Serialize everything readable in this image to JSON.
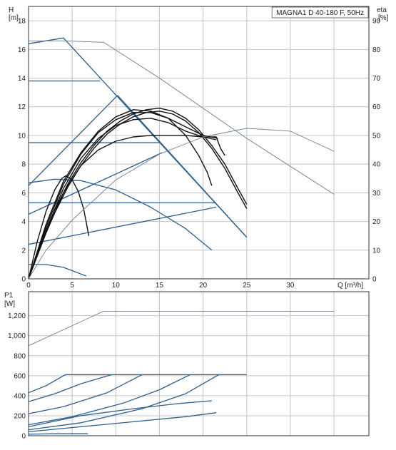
{
  "title": "MAGNA1 D 40-180 F, 50Hz",
  "colors": {
    "curve_black": "#111111",
    "curve_blue": "#2d5e8c",
    "curve_thin": "#6a7d98",
    "grid": "#c4c4c4"
  },
  "chart_data": [
    {
      "type": "line",
      "title": "MAGNA1 D 40-180 F, 50Hz",
      "ylabel_left": "H",
      "ylabel_left_unit": "[m]",
      "ylabel_right": "eta",
      "ylabel_right_unit": "[%]",
      "xlabel": "Q [m³/h]",
      "xlim": [
        0,
        39
      ],
      "ylim": [
        0,
        19
      ],
      "ylim_right": [
        0,
        95
      ],
      "x_ticks": [
        "0",
        "5",
        "10",
        "15",
        "20",
        "25",
        "30"
      ],
      "y_ticks": [
        "0",
        "2",
        "4",
        "6",
        "8",
        "10",
        "12",
        "14",
        "16",
        "18"
      ],
      "y_right_ticks": [
        "0",
        "10",
        "20",
        "30",
        "40",
        "50",
        "60",
        "70",
        "80",
        "90"
      ],
      "grid": true,
      "series": [
        {
          "group": "blue",
          "points": [
            [
              0,
              16.4
            ],
            [
              4,
              16.8
            ],
            [
              25,
              2.9
            ]
          ]
        },
        {
          "group": "blue",
          "points": [
            [
              0,
              13.8
            ],
            [
              8.2,
              13.8
            ]
          ]
        },
        {
          "group": "blue",
          "points": [
            [
              0,
              6.5
            ],
            [
              10.2,
              12.8
            ]
          ]
        },
        {
          "group": "blue",
          "points": [
            [
              0,
              9.5
            ],
            [
              15,
              9.5
            ]
          ]
        },
        {
          "group": "blue",
          "points": [
            [
              10.2,
              12.8
            ],
            [
              25,
              2.9
            ]
          ]
        },
        {
          "group": "blue",
          "points": [
            [
              0,
              4.5
            ],
            [
              15.3,
              8.8
            ]
          ]
        },
        {
          "group": "blue",
          "points": [
            [
              0,
              5.3
            ],
            [
              21.5,
              5.3
            ]
          ]
        },
        {
          "group": "blue",
          "points": [
            [
              0,
              2.4
            ],
            [
              21.5,
              5.0
            ]
          ]
        },
        {
          "group": "blue",
          "points": [
            [
              0,
              6.7
            ],
            [
              3,
              6.95
            ],
            [
              6,
              6.85
            ],
            [
              10,
              6.2
            ],
            [
              14,
              5.0
            ],
            [
              18,
              3.5
            ],
            [
              21,
              2.0
            ]
          ]
        },
        {
          "group": "blue",
          "points": [
            [
              0,
              1.0
            ],
            [
              2,
              1.0
            ],
            [
              4,
              0.8
            ],
            [
              6.6,
              0.2
            ]
          ]
        },
        {
          "group": "black",
          "points": [
            [
              0,
              0
            ],
            [
              1.5,
              2.6
            ],
            [
              3,
              4.8
            ],
            [
              4.5,
              6.6
            ],
            [
              6,
              8.1
            ],
            [
              7.5,
              9.3
            ],
            [
              9,
              10.3
            ],
            [
              10.5,
              11.0
            ],
            [
              12,
              11.5
            ],
            [
              13.5,
              11.8
            ],
            [
              15,
              11.9
            ],
            [
              16.5,
              11.7
            ],
            [
              18,
              11.2
            ],
            [
              19.5,
              10.4
            ],
            [
              21,
              9.3
            ],
            [
              22.5,
              8.0
            ],
            [
              24,
              6.3
            ],
            [
              25,
              5.2
            ]
          ]
        },
        {
          "group": "black",
          "points": [
            [
              0,
              0
            ],
            [
              1.5,
              2.5
            ],
            [
              3,
              4.6
            ],
            [
              4.5,
              6.4
            ],
            [
              6,
              7.9
            ],
            [
              7.5,
              9.1
            ],
            [
              9,
              10.1
            ],
            [
              10.5,
              10.8
            ],
            [
              12,
              11.3
            ],
            [
              13.5,
              11.6
            ],
            [
              15,
              11.7
            ],
            [
              16.5,
              11.5
            ],
            [
              18,
              11.0
            ],
            [
              19.5,
              10.2
            ],
            [
              21,
              9.1
            ],
            [
              22.5,
              7.7
            ],
            [
              24,
              6.0
            ],
            [
              25,
              4.9
            ]
          ]
        },
        {
          "group": "black",
          "points": [
            [
              0,
              0
            ],
            [
              2,
              3.6
            ],
            [
              4,
              6.6
            ],
            [
              6,
              8.7
            ],
            [
              8,
              10.2
            ],
            [
              10,
              11.1
            ],
            [
              12,
              11.6
            ],
            [
              14,
              11.6
            ],
            [
              16,
              11.2
            ],
            [
              18,
              10.0
            ],
            [
              19.5,
              8.6
            ],
            [
              20.5,
              7.4
            ],
            [
              21,
              6.5
            ]
          ]
        },
        {
          "group": "black",
          "points": [
            [
              0,
              0
            ],
            [
              2,
              3.4
            ],
            [
              4,
              6.3
            ],
            [
              6,
              8.4
            ],
            [
              8,
              9.8
            ],
            [
              10,
              10.7
            ],
            [
              12,
              11.1
            ],
            [
              14,
              11.2
            ],
            [
              16,
              10.9
            ],
            [
              18,
              10.3
            ],
            [
              20,
              9.9
            ],
            [
              21.5,
              9.7
            ]
          ]
        },
        {
          "group": "black",
          "points": [
            [
              0,
              0
            ],
            [
              2,
              3.2
            ],
            [
              4,
              6.0
            ],
            [
              6,
              7.9
            ],
            [
              8,
              9.0
            ],
            [
              10,
              9.6
            ],
            [
              12,
              9.9
            ],
            [
              14,
              10.0
            ],
            [
              16,
              10.0
            ],
            [
              18,
              10.0
            ],
            [
              20,
              9.9
            ],
            [
              21.5,
              9.9
            ],
            [
              22,
              9.1
            ],
            [
              22.5,
              8.6
            ]
          ]
        },
        {
          "group": "black",
          "points": [
            [
              0,
              0
            ],
            [
              2,
              3.8
            ],
            [
              4,
              6.8
            ],
            [
              6,
              8.8
            ],
            [
              8,
              10.3
            ],
            [
              10,
              11.3
            ],
            [
              12,
              11.8
            ],
            [
              14,
              11.7
            ],
            [
              16,
              11.2
            ],
            [
              18,
              10.6
            ],
            [
              20,
              10.0
            ],
            [
              21.7,
              9.8
            ]
          ]
        },
        {
          "group": "black",
          "points": [
            [
              0,
              0
            ],
            [
              1,
              2.6
            ],
            [
              2,
              4.7
            ],
            [
              3,
              6.2
            ],
            [
              3.8,
              7.0
            ],
            [
              4.3,
              7.2
            ],
            [
              5,
              6.9
            ],
            [
              5.7,
              6.1
            ],
            [
              6.3,
              4.9
            ],
            [
              6.6,
              4.0
            ],
            [
              6.9,
              3.0
            ]
          ]
        },
        {
          "group": "thin",
          "points": [
            [
              0,
              16.6
            ],
            [
              4,
              16.6
            ],
            [
              8.6,
              16.5
            ],
            [
              15,
              14.0
            ],
            [
              25,
              9.8
            ],
            [
              35,
              5.9
            ]
          ]
        },
        {
          "group": "thin",
          "points": [
            [
              0,
              0
            ],
            [
              2,
              2.0
            ],
            [
              5,
              4.1
            ],
            [
              10,
              6.9
            ],
            [
              15,
              8.7
            ],
            [
              20,
              9.9
            ],
            [
              25,
              10.5
            ],
            [
              30,
              10.3
            ],
            [
              35,
              8.9
            ]
          ]
        }
      ]
    },
    {
      "type": "line",
      "ylabel": "P1",
      "ylabel_unit": "[W]",
      "xlim": [
        0,
        39
      ],
      "ylim": [
        0,
        1440
      ],
      "y_ticks": [
        "0",
        "200",
        "400",
        "600",
        "800",
        "1,000",
        "1,200"
      ],
      "grid": true,
      "series": [
        {
          "group": "thin",
          "points": [
            [
              0,
              900
            ],
            [
              8.6,
              1245
            ],
            [
              35,
              1245
            ]
          ]
        },
        {
          "group": "blue",
          "points": [
            [
              4.2,
              610
            ],
            [
              25,
              610
            ]
          ]
        },
        {
          "group": "blue",
          "points": [
            [
              0,
              430
            ],
            [
              2,
              500
            ],
            [
              4.2,
              610
            ]
          ]
        },
        {
          "group": "blue",
          "points": [
            [
              0,
              340
            ],
            [
              3,
              420
            ],
            [
              6,
              520
            ],
            [
              9.5,
              610
            ]
          ]
        },
        {
          "group": "blue",
          "points": [
            [
              0,
              220
            ],
            [
              4,
              290
            ],
            [
              9,
              430
            ],
            [
              13,
              610
            ]
          ]
        },
        {
          "group": "blue",
          "points": [
            [
              0,
              110
            ],
            [
              5,
              190
            ],
            [
              11,
              330
            ],
            [
              15,
              460
            ],
            [
              18.5,
              610
            ]
          ]
        },
        {
          "group": "blue",
          "points": [
            [
              0,
              60
            ],
            [
              6,
              130
            ],
            [
              13,
              270
            ],
            [
              18,
              420
            ],
            [
              21.8,
              610
            ]
          ]
        },
        {
          "group": "blue",
          "points": [
            [
              0,
              90
            ],
            [
              6,
              200
            ],
            [
              12,
              270
            ],
            [
              17,
              320
            ],
            [
              21,
              350
            ]
          ]
        },
        {
          "group": "blue",
          "points": [
            [
              0,
              40
            ],
            [
              6,
              90
            ],
            [
              12,
              140
            ],
            [
              18,
              190
            ],
            [
              21.5,
              230
            ]
          ]
        },
        {
          "group": "blue",
          "points": [
            [
              0,
              15
            ],
            [
              3,
              20
            ],
            [
              6.8,
              20
            ]
          ]
        }
      ]
    }
  ]
}
